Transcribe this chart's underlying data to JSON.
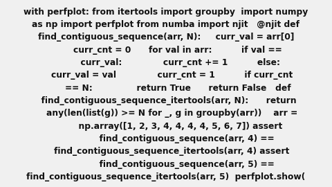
{
  "bg_color": "#f0f0f0",
  "text_color": "#111111",
  "text_fontsize": 8.8,
  "fig_width": 4.8,
  "fig_height": 2.7,
  "dpi": 100,
  "lines": [
    "with perfplot: from itertools import groupby  import numpy",
    "as np import perfplot from numba import njit   @njit def",
    "find_contiguous_sequence(arr, N):     curr_val = arr[0]",
    "        curr_cnt = 0      for val in arr:          if val ==",
    "          curr_val:              curr_cnt += 1          else:",
    "    curr_val = val              curr_cnt = 1          if curr_cnt",
    "        == N:               return True      return False   def",
    "  find_contiguous_sequence_itertools(arr, N):      return",
    "    any(len(list(g)) >= N for _, g in groupby(arr))    arr =",
    "          np.array([1, 2, 3, 4, 4, 4, 4, 5, 6, 7]) assert",
    "              find_contiguous_sequence(arr, 4) ==",
    "    find_contiguous_sequence_itertools(arr, 4) assert",
    "              find_contiguous_sequence(arr, 5) ==",
    "find_contiguous_sequence_itertools(arr, 5)  perfplot.show("
  ]
}
